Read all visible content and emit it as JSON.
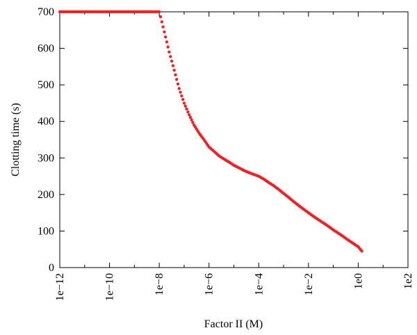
{
  "chart_data": {
    "type": "scatter",
    "title": "",
    "xlabel": "Factor II (M)",
    "ylabel": "Clotting time (s)",
    "x_scale": "log10",
    "xlim": [
      1e-12,
      100
    ],
    "ylim": [
      0,
      700
    ],
    "x_ticks": [
      1e-12,
      1e-10,
      1e-08,
      1e-06,
      0.0001,
      0.01,
      1,
      100
    ],
    "x_tick_labels": [
      "1e−12",
      "1e−10",
      "1e−8",
      "1e−6",
      "1e−4",
      "1e−2",
      "1e0",
      "1e2"
    ],
    "y_ticks": [
      0,
      100,
      200,
      300,
      400,
      500,
      600,
      700
    ],
    "y_tick_labels": [
      "0",
      "100",
      "200",
      "300",
      "400",
      "500",
      "600",
      "700"
    ],
    "grid": false,
    "marker_color": "#e8262a",
    "series": [
      {
        "x": [
          1e-12,
          1e-11,
          1e-10,
          1e-09,
          1e-08,
          1.6e-08,
          2.5e-08,
          4e-08,
          6.3e-08,
          1e-07,
          1.6e-07,
          2.5e-07,
          4e-07,
          6.3e-07,
          1e-06,
          1.6e-06,
          2.5e-06,
          4e-06,
          6.3e-06,
          1e-05,
          1.6e-05,
          2.5e-05,
          4e-05,
          6.3e-05,
          0.0001,
          0.00016,
          0.00025,
          0.0004,
          0.00063,
          0.001,
          0.0016,
          0.0025,
          0.004,
          0.0063,
          0.01,
          0.016,
          0.025,
          0.04,
          0.063,
          0.1,
          0.16,
          0.25,
          0.4,
          0.63,
          1,
          1.4
        ],
        "y": [
          700,
          700,
          700,
          700,
          700,
          645,
          590,
          540,
          490,
          450,
          418,
          390,
          368,
          350,
          330,
          318,
          306,
          297,
          289,
          280,
          273,
          266,
          260,
          255,
          250,
          242,
          233,
          224,
          214,
          203,
          192,
          181,
          170,
          160,
          150,
          140,
          131,
          122,
          113,
          103,
          94,
          85,
          75,
          66,
          57,
          45
        ]
      }
    ]
  }
}
